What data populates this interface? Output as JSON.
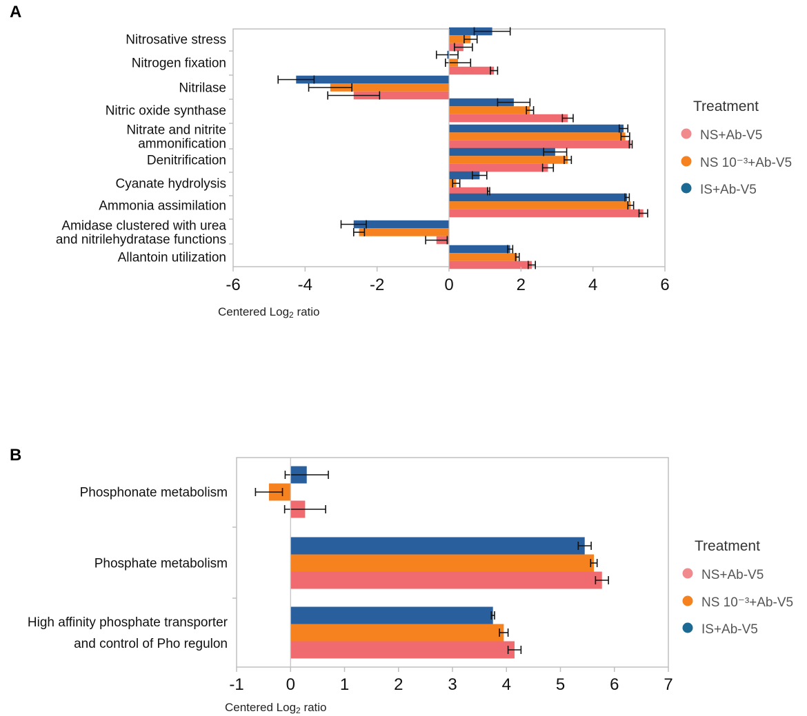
{
  "chart_data": [
    {
      "panel_label": "A",
      "type": "bar",
      "orientation": "horizontal",
      "categories": [
        "Nitrosative stress",
        "Nitrogen fixation",
        "Nitrilase",
        "Nitric oxide synthase",
        "Nitrate and nitrite ammonification",
        "Denitrification",
        "Cyanate hydrolysis",
        "Ammonia assimilation",
        "Amidase clustered with urea and nitrilehydratase functions",
        "Allantoin utilization"
      ],
      "category_label_lines": [
        [
          "Nitrosative stress"
        ],
        [
          "Nitrogen fixation"
        ],
        [
          "Nitrilase"
        ],
        [
          "Nitric oxide synthase"
        ],
        [
          "Nitrate and nitrite",
          "ammonification"
        ],
        [
          "Denitrification"
        ],
        [
          "Cyanate hydrolysis"
        ],
        [
          "Ammonia assimilation"
        ],
        [
          "Amidase clustered with urea",
          "and nitrilehydratase functions"
        ],
        [
          "Allantoin utilization"
        ]
      ],
      "series": [
        {
          "name": "IS+Ab-V5",
          "color": "#2a5f9e",
          "values": [
            1.2,
            -0.05,
            -4.25,
            1.8,
            4.85,
            2.95,
            0.85,
            4.95,
            -2.65,
            1.7
          ],
          "errors": [
            0.5,
            0.3,
            0.5,
            0.45,
            0.12,
            0.32,
            0.2,
            0.06,
            0.35,
            0.07
          ]
        },
        {
          "name": "NS 10⁻³+Ab-V5",
          "color": "#f5821f",
          "values": [
            0.6,
            0.25,
            -3.3,
            2.25,
            4.9,
            3.3,
            0.2,
            5.05,
            -2.5,
            1.9
          ],
          "errors": [
            0.18,
            0.35,
            0.6,
            0.1,
            0.12,
            0.1,
            0.1,
            0.08,
            0.15,
            0.05
          ]
        },
        {
          "name": "NS+Ab-V5",
          "color": "#ef6b6f",
          "values": [
            0.4,
            1.25,
            -2.65,
            3.3,
            5.05,
            2.75,
            1.1,
            5.4,
            -0.35,
            2.3
          ],
          "errors": [
            0.25,
            0.1,
            0.72,
            0.15,
            0.04,
            0.15,
            0.03,
            0.12,
            0.3,
            0.1
          ]
        }
      ],
      "xlim": [
        -6,
        6
      ],
      "xticks": [
        "-6",
        "-4",
        "-2",
        "0",
        "2",
        "4",
        "6"
      ],
      "xlabel_prefix": "Centered Log",
      "xlabel_sub": "2",
      "xlabel_suffix": " ratio",
      "legend_placement": "right",
      "legend_title": "Treatment",
      "legend_items": [
        "NS+Ab-V5",
        "NS 10⁻³+Ab-V5",
        "IS+Ab-V5"
      ],
      "legend_colors": [
        "#f08a8d",
        "#f5821f",
        "#1c6a93"
      ]
    },
    {
      "panel_label": "B",
      "type": "bar",
      "orientation": "horizontal",
      "categories": [
        "Phosphonate metabolism",
        "Phosphate metabolism",
        "High affinity phosphate transporter and control of Pho regulon"
      ],
      "category_label_lines": [
        [
          "Phosphonate metabolism"
        ],
        [
          "Phosphate metabolism"
        ],
        [
          "High affinity phosphate transporter",
          "and control of Pho regulon"
        ]
      ],
      "series": [
        {
          "name": "IS+Ab-V5",
          "color": "#2a5f9e",
          "values": [
            0.3,
            5.45,
            3.75
          ],
          "errors": [
            0.4,
            0.12,
            0.03
          ]
        },
        {
          "name": "NS 10⁻³+Ab-V5",
          "color": "#f5821f",
          "values": [
            -0.4,
            5.62,
            3.95
          ],
          "errors": [
            0.25,
            0.06,
            0.08
          ]
        },
        {
          "name": "NS+Ab-V5",
          "color": "#ef6b6f",
          "values": [
            0.27,
            5.77,
            4.15
          ],
          "errors": [
            0.38,
            0.12,
            0.12
          ]
        }
      ],
      "xlim": [
        -1,
        7
      ],
      "xticks": [
        "-1",
        "0",
        "1",
        "2",
        "3",
        "4",
        "5",
        "6",
        "7"
      ],
      "xlabel_prefix": "Centered Log",
      "xlabel_sub": "2",
      "xlabel_suffix": " ratio",
      "legend_placement": "right",
      "legend_title": "Treatment",
      "legend_items": [
        "NS+Ab-V5",
        "NS 10⁻³+Ab-V5",
        "IS+Ab-V5"
      ],
      "legend_colors": [
        "#f08a8d",
        "#f5821f",
        "#1c6a93"
      ]
    }
  ]
}
